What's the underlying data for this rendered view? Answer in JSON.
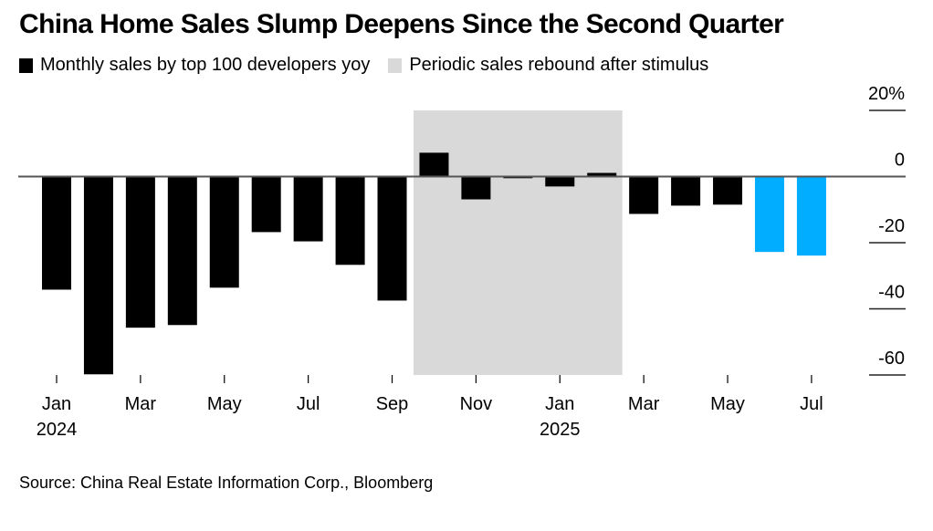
{
  "chart_data": {
    "type": "bar",
    "title": "China Home Sales Slump Deepens Since the Second Quarter",
    "legend": [
      {
        "label": "Monthly sales by top 100 developers yoy",
        "color": "#000000",
        "kind": "bar"
      },
      {
        "label": "Periodic sales rebound after stimulus",
        "color": "#d9d9d9",
        "kind": "shade"
      }
    ],
    "legend_placement": "top-left",
    "categories": [
      "Jan 2024",
      "Feb 2024",
      "Mar 2024",
      "Apr 2024",
      "May 2024",
      "Jun 2024",
      "Jul 2024",
      "Aug 2024",
      "Sep 2024",
      "Oct 2024",
      "Nov 2024",
      "Dec 2024",
      "Jan 2025",
      "Feb 2025",
      "Mar 2025",
      "Apr 2025",
      "May 2025",
      "Jun 2025",
      "Jul 2025"
    ],
    "series": [
      {
        "name": "Monthly sales by top 100 developers yoy",
        "unit": "%",
        "values": [
          -34.2,
          -59.8,
          -45.7,
          -44.9,
          -33.6,
          -16.8,
          -19.6,
          -26.7,
          -37.5,
          7.2,
          -6.9,
          -0.5,
          -3.0,
          1.1,
          -11.3,
          -8.8,
          -8.5,
          -22.8,
          -23.9
        ],
        "colors": [
          "#000000",
          "#000000",
          "#000000",
          "#000000",
          "#000000",
          "#000000",
          "#000000",
          "#000000",
          "#000000",
          "#000000",
          "#000000",
          "#000000",
          "#000000",
          "#000000",
          "#000000",
          "#000000",
          "#000000",
          "#00adff",
          "#00adff"
        ]
      }
    ],
    "highlight_color": "#00adff",
    "shaded_region": {
      "label": "Periodic sales rebound after stimulus",
      "from": "Oct 2024",
      "to": "Feb 2025",
      "color": "#d9d9d9"
    },
    "x_ticks": [
      {
        "category": "Jan 2024",
        "label": "Jan",
        "sublabel": "2024"
      },
      {
        "category": "Mar 2024",
        "label": "Mar",
        "sublabel": ""
      },
      {
        "category": "May 2024",
        "label": "May",
        "sublabel": ""
      },
      {
        "category": "Jul 2024",
        "label": "Jul",
        "sublabel": ""
      },
      {
        "category": "Sep 2024",
        "label": "Sep",
        "sublabel": ""
      },
      {
        "category": "Nov 2024",
        "label": "Nov",
        "sublabel": ""
      },
      {
        "category": "Jan 2025",
        "label": "Jan",
        "sublabel": "2025"
      },
      {
        "category": "Mar 2025",
        "label": "Mar",
        "sublabel": ""
      },
      {
        "category": "May 2025",
        "label": "May",
        "sublabel": ""
      },
      {
        "category": "Jul 2025",
        "label": "Jul",
        "sublabel": ""
      }
    ],
    "y_ticks": [
      {
        "value": 20,
        "label": "20%"
      },
      {
        "value": 0,
        "label": "0"
      },
      {
        "value": -20,
        "label": "-20"
      },
      {
        "value": -40,
        "label": "-40"
      },
      {
        "value": -60,
        "label": "-60"
      }
    ],
    "ylim": [
      -60,
      20
    ],
    "y_axis_side": "right",
    "grid": false,
    "xlabel": "",
    "ylabel": "",
    "source": "Source: China Real Estate Information Corp., Bloomberg"
  }
}
